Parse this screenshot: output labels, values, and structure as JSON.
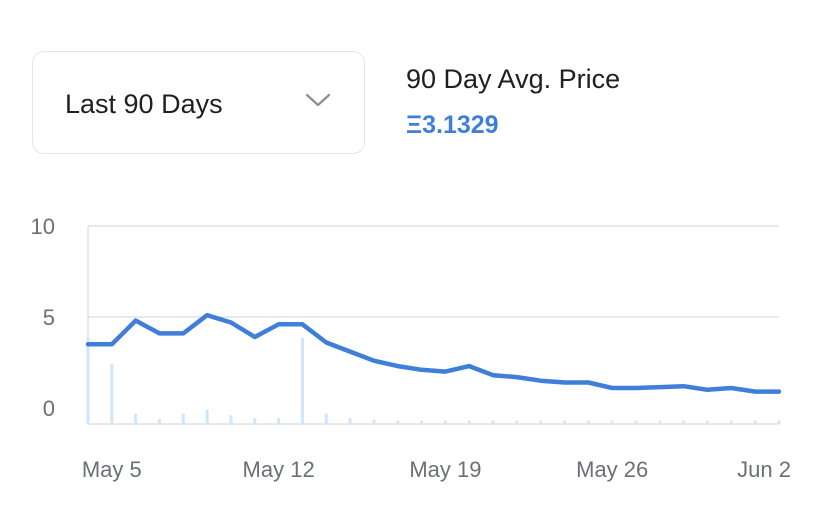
{
  "selector": {
    "value": "Last 90 Days",
    "icon": "chevron-down-icon"
  },
  "summary": {
    "title": "90 Day Avg. Price",
    "value": "Ξ3.1329",
    "value_color": "#3f7fd9"
  },
  "chart_data": {
    "type": "line",
    "title": "",
    "xlabel": "",
    "ylabel": "",
    "ylim": [
      0,
      10
    ],
    "xlim": [
      "2024-05-04",
      "2024-06-02"
    ],
    "y_ticks": [
      {
        "value": 0,
        "label": "0"
      },
      {
        "value": 5,
        "label": "5"
      },
      {
        "value": 10,
        "label": "10"
      }
    ],
    "x_ticks": [
      {
        "x": "2024-05-05",
        "label": "May 5"
      },
      {
        "x": "2024-05-12",
        "label": "May 12"
      },
      {
        "x": "2024-05-19",
        "label": "May 19"
      },
      {
        "x": "2024-05-26",
        "label": "May 26"
      },
      {
        "x": "2024-06-02",
        "label": "Jun 2"
      }
    ],
    "grid": "horizontal",
    "line_color": "#3f7fd9",
    "volume_color": "#cfe6fb",
    "series": [
      {
        "x": [
          "2024-05-04",
          "2024-05-05",
          "2024-05-06",
          "2024-05-07",
          "2024-05-08",
          "2024-05-09",
          "2024-05-10",
          "2024-05-11",
          "2024-05-12",
          "2024-05-13",
          "2024-05-14",
          "2024-05-15",
          "2024-05-16",
          "2024-05-17",
          "2024-05-18",
          "2024-05-19",
          "2024-05-20",
          "2024-05-21",
          "2024-05-22",
          "2024-05-23",
          "2024-05-24",
          "2024-05-25",
          "2024-05-26",
          "2024-05-27",
          "2024-05-28",
          "2024-05-29",
          "2024-05-30",
          "2024-05-31",
          "2024-06-01",
          "2024-06-02"
        ],
        "values": [
          3.5,
          3.5,
          4.8,
          4.1,
          4.1,
          5.1,
          4.7,
          3.9,
          4.6,
          4.6,
          3.6,
          3.1,
          2.6,
          2.3,
          2.1,
          2.0,
          2.3,
          1.8,
          1.7,
          1.5,
          1.4,
          1.4,
          1.1,
          1.1,
          1.15,
          1.2,
          1.0,
          1.1,
          0.9,
          0.9
        ]
      }
    ],
    "volume": [
      10,
      7,
      1.2,
      0.6,
      1.2,
      1.7,
      1.0,
      0.7,
      0.7,
      10,
      1.2,
      0.7,
      0.5,
      0.4,
      0.4,
      0.4,
      0.4,
      0.4,
      0.4,
      0.4,
      0.4,
      0.4,
      0.4,
      0.4,
      0.4,
      0.4,
      0.4,
      0.4,
      0.4,
      0.4
    ]
  }
}
